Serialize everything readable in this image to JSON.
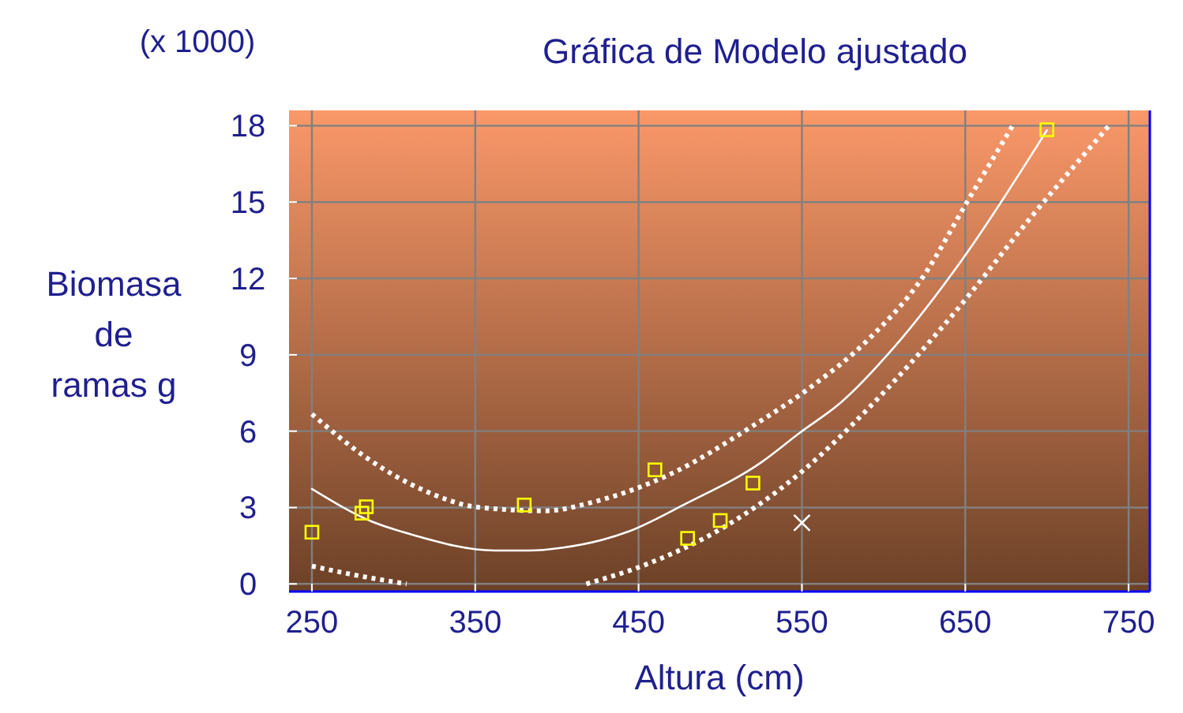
{
  "chart_data": {
    "type": "scatter",
    "title": "Gráfica de Modelo ajustado",
    "xlabel": "Altura (cm)",
    "ylabel": "Biomasa de ramas g",
    "annotations": [
      "(x 1000)"
    ],
    "xlim": [
      236,
      763
    ],
    "ylim": [
      -0.3,
      18.6
    ],
    "xticks": [
      250,
      350,
      450,
      550,
      650,
      750
    ],
    "yticks": [
      0,
      3,
      6,
      9,
      12,
      15,
      18
    ],
    "grid": true,
    "series": [
      {
        "type": "line",
        "color": "#ffffff",
        "line_style": "solid",
        "x": [
          250,
          287,
          311,
          362,
          383,
          403,
          444,
          478,
          525,
          549,
          573,
          607,
          648,
          700
        ],
        "values": [
          3.73,
          2.44,
          1.94,
          1.31,
          1.31,
          1.42,
          2.06,
          3.12,
          4.77,
          5.95,
          7.08,
          9.34,
          12.73,
          17.82
        ]
      },
      {
        "type": "line",
        "color": "#ffffff",
        "line_style": "dotted",
        "x": [
          250,
          284,
          318,
          352,
          393,
          423,
          471,
          519,
          556,
          590,
          624,
          651,
          679
        ],
        "values": [
          6.67,
          4.93,
          3.69,
          3.01,
          2.87,
          3.23,
          4.36,
          6.17,
          7.76,
          9.56,
          12.05,
          14.99,
          18.0
        ]
      },
      {
        "type": "line",
        "color": "#ffffff",
        "line_style": "dotted",
        "x": [
          250,
          277,
          308,
          363,
          418,
          454,
          502,
          549,
          590,
          641,
          692,
          738
        ],
        "values": [
          0.7,
          0.34,
          0,
          null,
          0,
          0.75,
          2.22,
          4.36,
          6.85,
          10.47,
          14.54,
          18.0
        ]
      },
      {
        "color": "#ffff00",
        "marker": "square",
        "x": [
          250,
          280.6,
          283.3,
          380,
          460,
          480,
          500,
          520,
          700
        ],
        "values": [
          2.03,
          2.78,
          3.03,
          3.1,
          4.48,
          1.79,
          2.49,
          3.96,
          17.84
        ]
      },
      {
        "color": "#ffffff",
        "marker": "cross",
        "x": [
          550
        ],
        "values": [
          2.4
        ]
      }
    ]
  }
}
